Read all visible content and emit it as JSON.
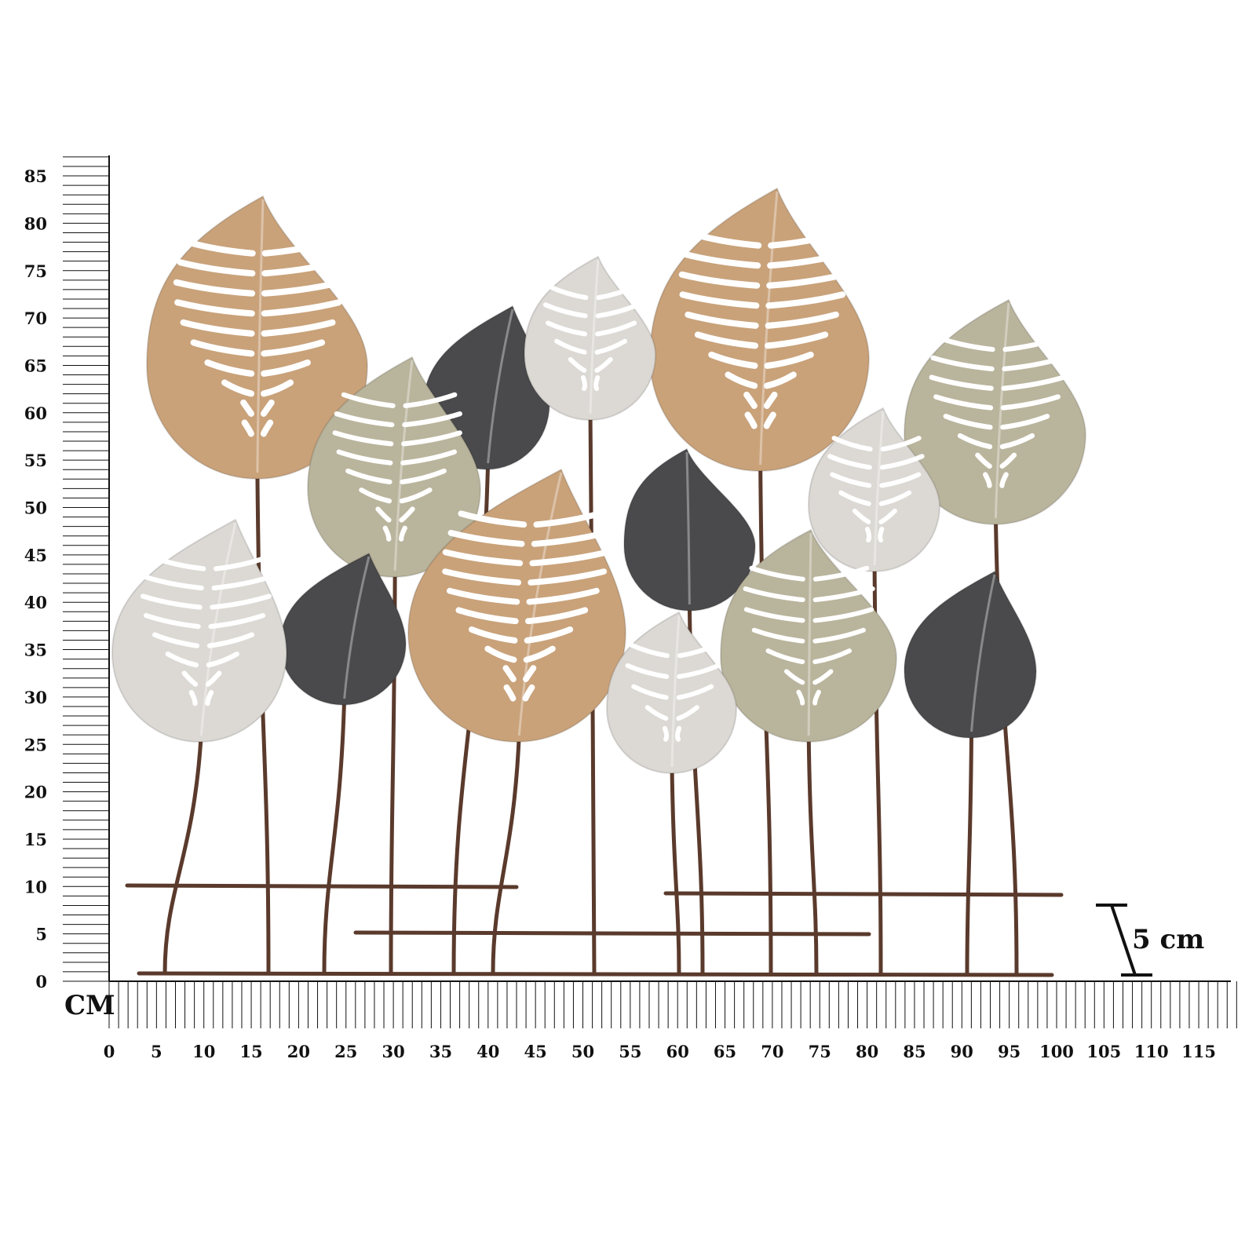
{
  "ruler": {
    "unit_label": "CM",
    "vertical_labels": [
      "0",
      "5",
      "10",
      "15",
      "20",
      "25",
      "30",
      "35",
      "40",
      "45",
      "50",
      "55",
      "60",
      "65",
      "70",
      "75",
      "80",
      "85"
    ],
    "horizontal_labels": [
      "0",
      "5",
      "10",
      "15",
      "20",
      "25",
      "30",
      "35",
      "40",
      "45",
      "50",
      "55",
      "60",
      "65",
      "70",
      "75",
      "80",
      "85",
      "90",
      "95",
      "100",
      "105",
      "110",
      "115"
    ],
    "vertical_max_cm": 87,
    "horizontal_max_cm": 119
  },
  "scale_marker": {
    "label": "5 cm",
    "length_cm": 5
  },
  "colors": {
    "gold": "#c9a27a",
    "olive": "#b9b49c",
    "silver": "#dcd9d4",
    "dark": "#4a4a4c",
    "stem": "#5a3a2c",
    "ruler": "#111111"
  }
}
